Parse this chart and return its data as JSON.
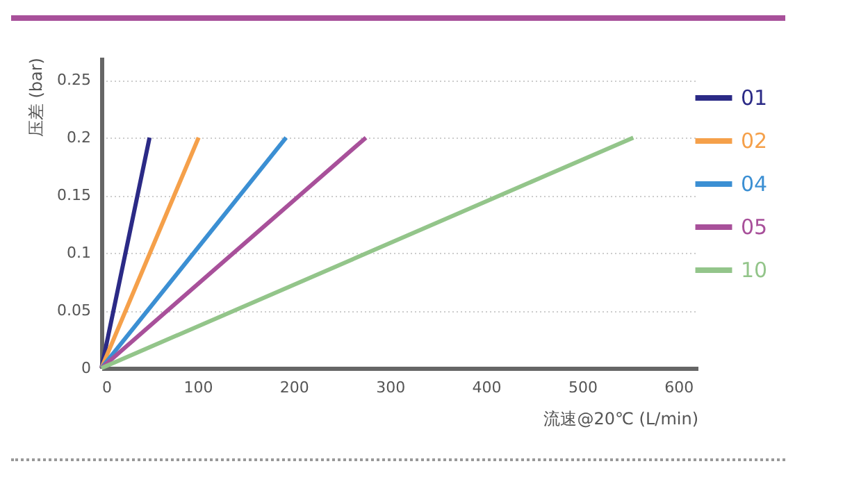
{
  "chart_data": {
    "type": "line",
    "xlabel": "流速@20℃ (L/min)",
    "ylabel": "压差 (bar)",
    "xlim": [
      0,
      620
    ],
    "xticks": [
      0,
      100,
      200,
      300,
      400,
      500,
      600
    ],
    "ylim": [
      0,
      0.27
    ],
    "yticks": [
      0,
      0.05,
      0.1,
      0.15,
      0.2,
      0.25
    ],
    "grid": "y",
    "legend": "top right",
    "line_style": "solid",
    "marker": "none",
    "series": [
      {
        "name": "01",
        "color": "#2b2a86",
        "x": [
          0,
          50
        ],
        "values": [
          0,
          0.2
        ]
      },
      {
        "name": "02",
        "color": "#f5a04a",
        "x": [
          0,
          101
        ],
        "values": [
          0,
          0.2
        ]
      },
      {
        "name": "04",
        "color": "#3b8fd3",
        "x": [
          0,
          192
        ],
        "values": [
          0,
          0.2
        ]
      },
      {
        "name": "05",
        "color": "#a8509a",
        "x": [
          0,
          275
        ],
        "values": [
          0,
          0.2
        ]
      },
      {
        "name": "10",
        "color": "#93c58a",
        "x": [
          0,
          553
        ],
        "values": [
          0,
          0.2
        ]
      }
    ]
  }
}
